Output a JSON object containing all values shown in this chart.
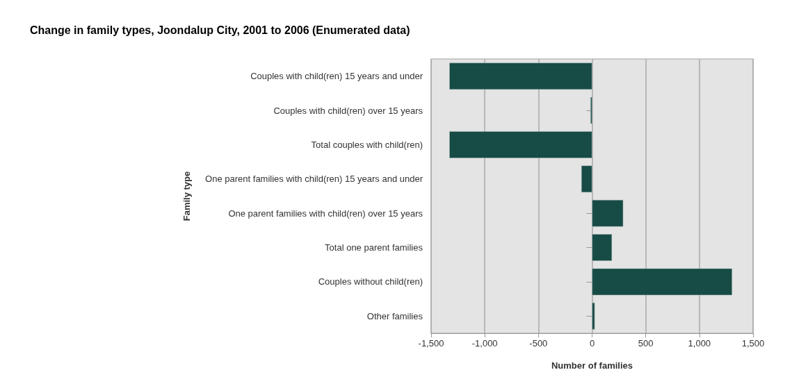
{
  "chart_data": {
    "type": "bar",
    "orientation": "horizontal",
    "title": "Change in family types, Joondalup City, 2001 to 2006 (Enumerated data)",
    "xlabel": "Number of families",
    "ylabel": "Family type",
    "categories": [
      "Couples with child(ren) 15 years and under",
      "Couples with child(ren) over 15 years",
      "Total couples with child(ren)",
      "One parent families with child(ren) 15 years and under",
      "One parent families with child(ren) over 15 years",
      "Total one parent families",
      "Couples without child(ren)",
      "Other families"
    ],
    "values": [
      -1330,
      -15,
      -1330,
      -100,
      290,
      185,
      1305,
      25
    ],
    "color": "#174b45",
    "xlim": [
      -1500,
      1500
    ],
    "xticks": [
      {
        "value": -1500,
        "label": "-1,500"
      },
      {
        "value": -1000,
        "label": "-1,000"
      },
      -500,
      0,
      500,
      {
        "value": 1000,
        "label": "1,000"
      },
      {
        "value": 1500,
        "label": "1,500"
      }
    ],
    "grid": "x"
  }
}
